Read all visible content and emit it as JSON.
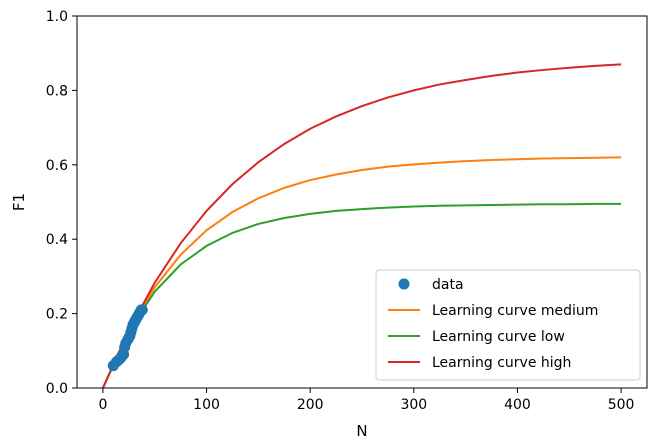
{
  "chart_data": {
    "type": "line",
    "xlabel": "N",
    "ylabel": "F1",
    "xlim": [
      -25,
      525
    ],
    "ylim": [
      0.0,
      1.0
    ],
    "xticks": [
      0,
      100,
      200,
      300,
      400,
      500
    ],
    "yticks": [
      0.0,
      0.2,
      0.4,
      0.6,
      0.8,
      1.0
    ],
    "xtick_labels": [
      "0",
      "100",
      "200",
      "300",
      "400",
      "500"
    ],
    "ytick_labels": [
      "0.0",
      "0.2",
      "0.4",
      "0.6",
      "0.8",
      "1.0"
    ],
    "grid": false,
    "legend_position": "lower-right",
    "scatter": {
      "name": "data",
      "color": "#1f77b4",
      "x": [
        10,
        13,
        15,
        17,
        18,
        20,
        21,
        22,
        24,
        25,
        26,
        27,
        28,
        29,
        30,
        31,
        32,
        33,
        34,
        35,
        36,
        37,
        38
      ],
      "y": [
        0.06,
        0.07,
        0.075,
        0.08,
        0.085,
        0.09,
        0.11,
        0.12,
        0.13,
        0.135,
        0.14,
        0.15,
        0.16,
        0.17,
        0.175,
        0.18,
        0.185,
        0.19,
        0.195,
        0.2,
        0.205,
        0.21,
        0.21
      ]
    },
    "series": [
      {
        "name": "Learning curve medium",
        "color": "#ff7f0e",
        "x": [
          0,
          25,
          50,
          75,
          100,
          125,
          150,
          175,
          200,
          225,
          250,
          275,
          300,
          325,
          350,
          375,
          400,
          425,
          450,
          475,
          500
        ],
        "y": [
          0.0,
          0.155,
          0.271,
          0.358,
          0.424,
          0.473,
          0.51,
          0.538,
          0.559,
          0.574,
          0.586,
          0.595,
          0.601,
          0.606,
          0.61,
          0.613,
          0.615,
          0.617,
          0.618,
          0.619,
          0.62
        ]
      },
      {
        "name": "Learning curve low",
        "color": "#2ca02c",
        "x": [
          0,
          25,
          50,
          75,
          100,
          125,
          150,
          175,
          200,
          225,
          250,
          275,
          300,
          325,
          350,
          375,
          400,
          425,
          450,
          475,
          500
        ],
        "y": [
          0.0,
          0.153,
          0.259,
          0.332,
          0.382,
          0.417,
          0.441,
          0.457,
          0.468,
          0.476,
          0.481,
          0.485,
          0.488,
          0.49,
          0.491,
          0.492,
          0.493,
          0.494,
          0.494,
          0.495,
          0.495
        ]
      },
      {
        "name": "Learning curve high",
        "color": "#d62728",
        "x": [
          0,
          25,
          50,
          75,
          100,
          125,
          150,
          175,
          200,
          225,
          250,
          275,
          300,
          325,
          350,
          375,
          400,
          425,
          450,
          475,
          500
        ],
        "y": [
          0.0,
          0.155,
          0.283,
          0.389,
          0.476,
          0.548,
          0.607,
          0.656,
          0.697,
          0.73,
          0.758,
          0.781,
          0.8,
          0.816,
          0.828,
          0.839,
          0.848,
          0.855,
          0.861,
          0.866,
          0.87
        ]
      }
    ]
  }
}
